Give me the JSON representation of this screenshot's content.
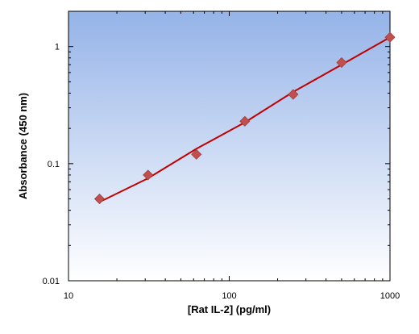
{
  "chart_data": {
    "type": "scatter",
    "xlabel": "[Rat IL-2] (pg/ml)",
    "ylabel": "Absorbance (450 nm)",
    "x_scale": "log",
    "y_scale": "log",
    "xlim": [
      10,
      1000
    ],
    "ylim": [
      0.01,
      2
    ],
    "x_ticks": [
      10,
      100,
      1000
    ],
    "x_tick_labels": [
      "10",
      "100",
      "1000"
    ],
    "y_ticks": [
      0.01,
      0.1,
      1
    ],
    "y_tick_labels": [
      "0.01",
      "0.1",
      "1"
    ],
    "grid": false,
    "colors": {
      "marker": "#c0504d",
      "fit_line": "#c00000",
      "background_top": "#95b3e8",
      "background_bottom": "#ffffff"
    },
    "series": [
      {
        "points": [
          {
            "x": 15.6,
            "y": 0.05
          },
          {
            "x": 31.25,
            "y": 0.08
          },
          {
            "x": 62.5,
            "y": 0.12
          },
          {
            "x": 125,
            "y": 0.23
          },
          {
            "x": 250,
            "y": 0.39
          },
          {
            "x": 500,
            "y": 0.73
          },
          {
            "x": 1000,
            "y": 1.2
          }
        ]
      }
    ],
    "fit": {
      "type": "line",
      "x_range": [
        15.6,
        1000
      ],
      "points": [
        {
          "x": 15.6,
          "y": 0.047
        },
        {
          "x": 31.25,
          "y": 0.075
        },
        {
          "x": 62.5,
          "y": 0.134
        },
        {
          "x": 125,
          "y": 0.225
        },
        {
          "x": 250,
          "y": 0.41
        },
        {
          "x": 500,
          "y": 0.7
        },
        {
          "x": 1000,
          "y": 1.2
        }
      ]
    }
  }
}
